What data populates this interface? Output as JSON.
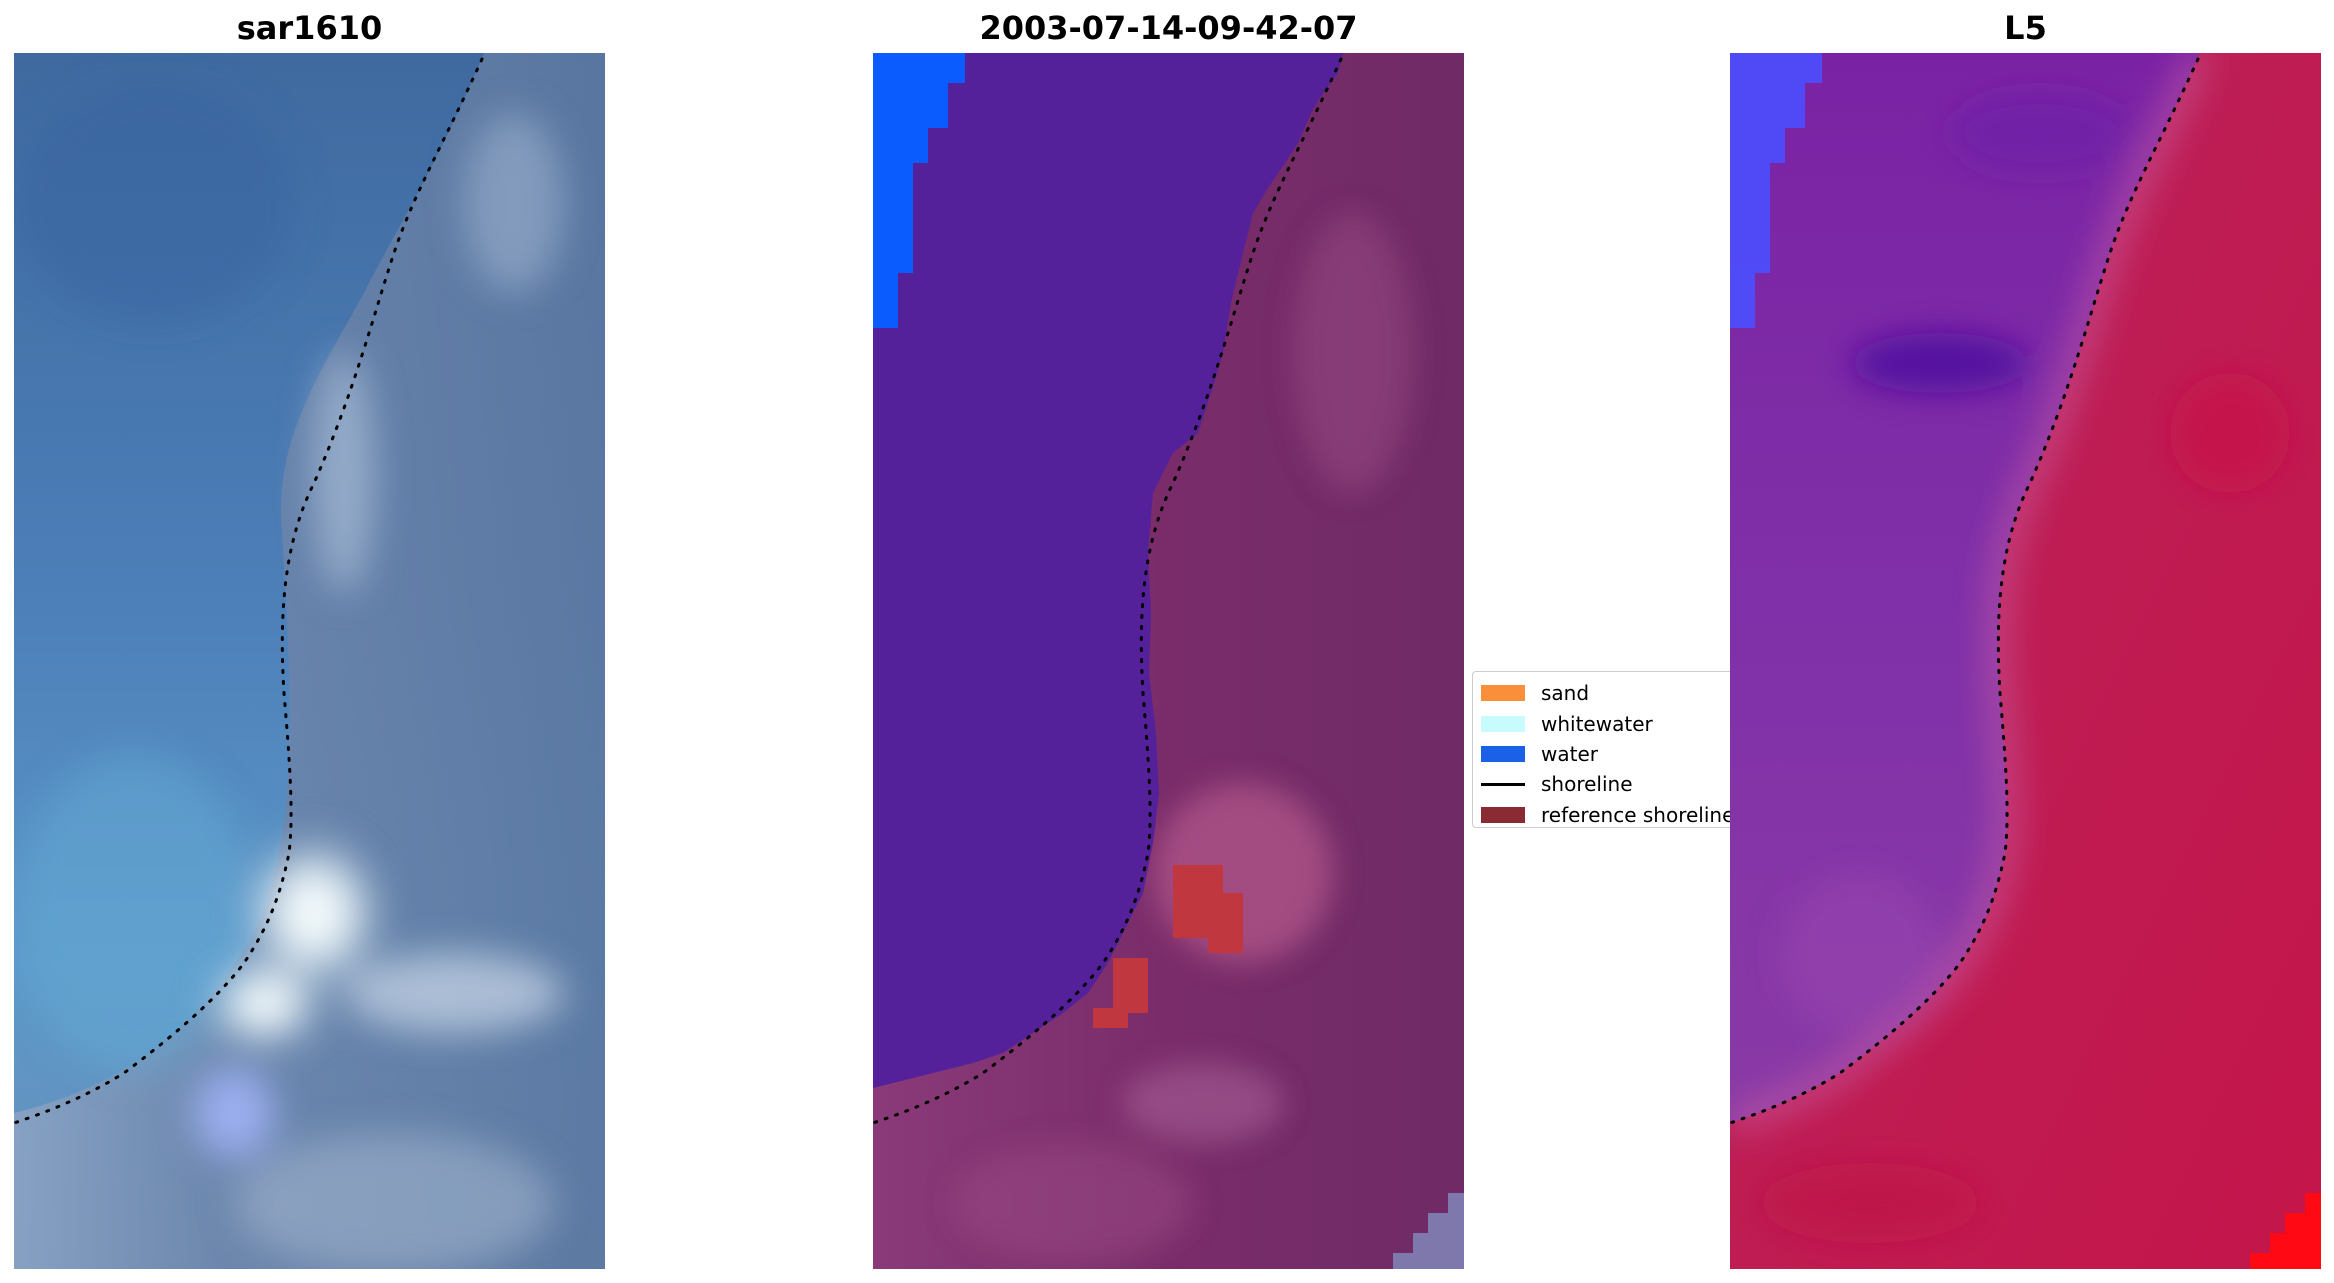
{
  "figure": {
    "panels": [
      {
        "title": "sar1610",
        "kind": "rgb-composite"
      },
      {
        "title": "2003-07-14-09-42-07",
        "kind": "classified"
      },
      {
        "title": "L5",
        "kind": "index-map"
      }
    ]
  },
  "legend": {
    "items": [
      {
        "label": "sand",
        "color": "#f98e3b",
        "marker": "patch"
      },
      {
        "label": "whitewater",
        "color": "#c8fbfc",
        "marker": "patch"
      },
      {
        "label": "water",
        "color": "#1a61e8",
        "marker": "patch"
      },
      {
        "label": "shoreline",
        "color": "#000000",
        "marker": "line"
      },
      {
        "label": "reference shoreline",
        "color": "#8a2a32",
        "marker": "patch"
      }
    ]
  },
  "colors": {
    "rgb_water": "#4a74a6",
    "rgb_land": "#5a7aa3",
    "rgb_whitewater": "#e6eef6",
    "class_water": "#0a5cff",
    "class_sea": "#55249a",
    "class_land": "#7a2b6a",
    "class_sand_overlay": "#bf3a4a",
    "index_low": "#7a28a8",
    "index_high": "#c41d4c",
    "index_blue": "#4a4fff",
    "shoreline": "#000000"
  }
}
